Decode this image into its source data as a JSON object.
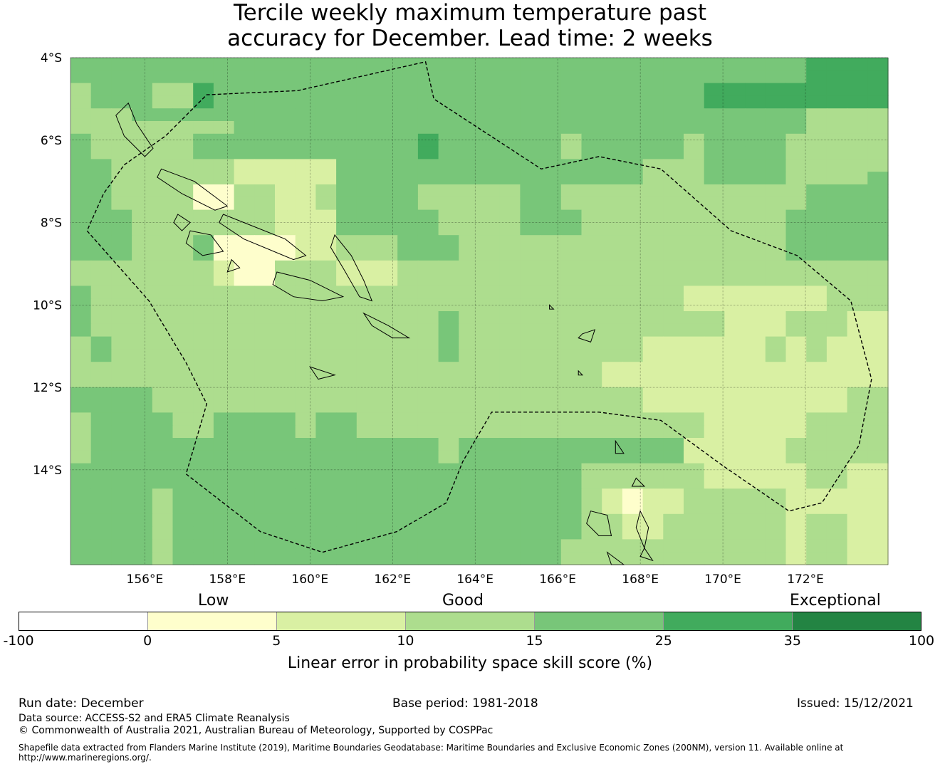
{
  "title": {
    "line1": "Tercile weekly maximum temperature past",
    "line2": "accuracy for December. Lead time: 2 weeks"
  },
  "map": {
    "lat_labels": [
      "4°S",
      "6°S",
      "8°S",
      "10°S",
      "12°S",
      "14°S"
    ],
    "lon_labels": [
      "156°E",
      "158°E",
      "160°E",
      "162°E",
      "164°E",
      "166°E",
      "168°E",
      "170°E",
      "172°E"
    ],
    "lat_range": [
      -4,
      -16.3
    ],
    "lon_range": [
      154.2,
      174.0
    ],
    "lat_ticks": [
      -4,
      -6,
      -8,
      -10,
      -12,
      -14
    ],
    "lon_ticks": [
      156,
      158,
      160,
      162,
      164,
      166,
      168,
      170,
      172
    ],
    "grid_rows": [
      "3333333333333333333333333333333333334444",
      "3333333333333333333333333333333333334444",
      "2333224333333333333333333333333444444444",
      "2333224333333333333333333333333444444444",
      "2223333333333333333333333333333333332222",
      "2222222233333333333333333333333333332222",
      "3222223333333333343333332333332333322222",
      "3222223333333333343333332333332333322222",
      "3322222211111333333333333333222333322222",
      "3322222211111333333333333333222333322223",
      "3322220022112333322222332222222222223333",
      "3322220022112333322222332222222222223333",
      "3332222222111333332222333222222222233333",
      "3332222222111333332222333222222222233333",
      "3332223000011222333222222222222222233333",
      "3332223000011222333222222222222222233333",
      "2222222100222111222222222222222222222222",
      "2222222100222111222222222222222222222222",
      "3222222222222222222222222222221111111222",
      "3222222222222222222222222222221111111222",
      "3222222222222222223222222222222211122211",
      "3222222222222222223222222222222211122211",
      "2322222222222222223222222222111111212111",
      "2322222222222222223222222222111111212111",
      "2222222222222222222222222211111111111111",
      "2222222222222222222222222211111111111111",
      "3333222222222222222222222222111111111122",
      "3333222222222222222222222222111111111122",
      "2333322333323322222222222222222111112222",
      "2333322333323322222222222222222111112222",
      "2333333333333333332333333333331111122222",
      "2333333333333333332333333333331111122222",
      "3333333333333333333333333222222111112211",
      "3333333333333333333333333222222111112211",
      "3333233333333333333333333210112222211111",
      "3333233333333333333333333210112222211111",
      "3333233333333333333333333221122222212211",
      "3333233333333333333333333221122222212211",
      "3333233333333333333333332222222222212211",
      "3333233333333333333333332222222222212211"
    ],
    "palette": [
      "#fefecc",
      "#d9f0a3",
      "#addd8e",
      "#78c679",
      "#41ab5d",
      "#238443"
    ],
    "eez_outline": [
      [
        155.5,
        -6.6
      ],
      [
        156.5,
        -5.9
      ],
      [
        157.5,
        -4.9
      ],
      [
        159.7,
        -4.8
      ],
      [
        162.8,
        -4.1
      ],
      [
        163.0,
        -5.0
      ],
      [
        165.6,
        -6.7
      ],
      [
        167.0,
        -6.4
      ],
      [
        168.5,
        -6.7
      ],
      [
        170.2,
        -8.2
      ],
      [
        171.8,
        -8.8
      ],
      [
        173.1,
        -9.9
      ],
      [
        173.6,
        -11.8
      ],
      [
        173.3,
        -13.4
      ],
      [
        172.4,
        -14.8
      ],
      [
        171.6,
        -15.0
      ],
      [
        170.0,
        -13.9
      ],
      [
        168.5,
        -12.8
      ],
      [
        167.0,
        -12.6
      ],
      [
        165.2,
        -12.6
      ],
      [
        164.4,
        -12.6
      ],
      [
        163.7,
        -13.8
      ],
      [
        163.3,
        -14.8
      ],
      [
        162.1,
        -15.5
      ],
      [
        160.3,
        -16.0
      ],
      [
        158.8,
        -15.5
      ],
      [
        157.0,
        -14.1
      ],
      [
        157.5,
        -12.4
      ],
      [
        157.0,
        -11.4
      ],
      [
        156.1,
        -9.9
      ],
      [
        154.6,
        -8.2
      ],
      [
        155.0,
        -7.3
      ],
      [
        155.5,
        -6.6
      ]
    ]
  },
  "colorbar": {
    "category_low": "Low",
    "category_good": "Good",
    "category_exceptional": "Exceptional",
    "tick_labels": [
      "-100",
      "0",
      "5",
      "10",
      "15",
      "25",
      "35",
      "100"
    ],
    "colors": [
      "#ffffff",
      "#fefecc",
      "#d9f0a3",
      "#addd8e",
      "#78c679",
      "#41ab5d",
      "#238443"
    ],
    "label": "Linear error in probability space skill score (%)"
  },
  "footer": {
    "run_date": "Run date: December",
    "base_period": "Base period: 1981-2018",
    "issued": "Issued: 15/12/2021",
    "data_source": "Data source: ACCESS-S2 and ERA5 Climate Reanalysis",
    "copyright": "© Commonwealth of Australia 2021, Australian Bureau of Meteorology, Supported by COSPPac",
    "shapefile": "Shapefile data extracted from Flanders Marine Institute (2019), Maritime Boundaries Geodatabase: Maritime Boundaries and Exclusive Economic Zones (200NM), version 11. Available online at http://www.marineregions.org/."
  }
}
